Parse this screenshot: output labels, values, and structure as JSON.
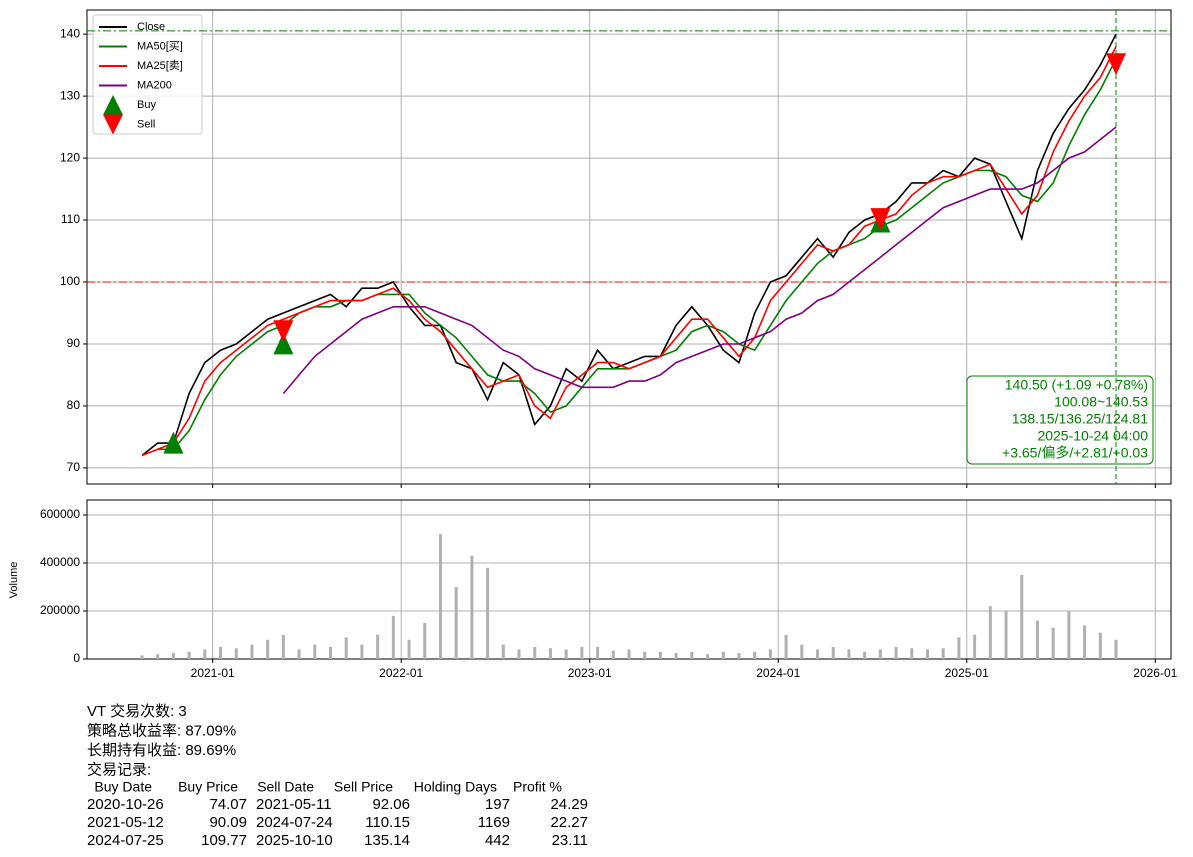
{
  "chart_data": [
    {
      "type": "line",
      "x": [
        "2020-08",
        "2020-09",
        "2020-10",
        "2020-11",
        "2020-12",
        "2021-01",
        "2021-02",
        "2021-03",
        "2021-04",
        "2021-05",
        "2021-06",
        "2021-07",
        "2021-08",
        "2021-09",
        "2021-10",
        "2021-11",
        "2021-12",
        "2022-01",
        "2022-02",
        "2022-03",
        "2022-04",
        "2022-05",
        "2022-06",
        "2022-07",
        "2022-08",
        "2022-09",
        "2022-10",
        "2022-11",
        "2022-12",
        "2023-01",
        "2023-02",
        "2023-03",
        "2023-04",
        "2023-05",
        "2023-06",
        "2023-07",
        "2023-08",
        "2023-09",
        "2023-10",
        "2023-11",
        "2023-12",
        "2024-01",
        "2024-02",
        "2024-03",
        "2024-04",
        "2024-05",
        "2024-06",
        "2024-07",
        "2024-08",
        "2024-09",
        "2024-10",
        "2024-11",
        "2024-12",
        "2025-01",
        "2025-02",
        "2025-03",
        "2025-04",
        "2025-05",
        "2025-06",
        "2025-07",
        "2025-08",
        "2025-09",
        "2025-10"
      ],
      "series": [
        {
          "name": "Close",
          "color": "#000000",
          "values": [
            72,
            74,
            74,
            82,
            87,
            89,
            90,
            92,
            94,
            95,
            96,
            97,
            98,
            96,
            99,
            99,
            100,
            96,
            93,
            93,
            87,
            86,
            81,
            87,
            85,
            77,
            80,
            86,
            84,
            89,
            86,
            87,
            88,
            88,
            93,
            96,
            93,
            89,
            87,
            95,
            100,
            101,
            104,
            107,
            104,
            108,
            110,
            111,
            113,
            116,
            116,
            118,
            117,
            120,
            119,
            113,
            107,
            118,
            124,
            128,
            131,
            135,
            140
          ]
        },
        {
          "name": "MA50[买]",
          "color": "#008000",
          "values": [
            null,
            73,
            73,
            76,
            81,
            85,
            88,
            90,
            92,
            93,
            95,
            96,
            96,
            97,
            97,
            98,
            98,
            98,
            95,
            93,
            91,
            88,
            85,
            84,
            84,
            82,
            79,
            80,
            83,
            86,
            86,
            86,
            87,
            88,
            89,
            92,
            93,
            92,
            90,
            89,
            93,
            97,
            100,
            103,
            105,
            106,
            107,
            109,
            110,
            112,
            114,
            116,
            117,
            118,
            118,
            117,
            114,
            113,
            116,
            122,
            127,
            131,
            136
          ]
        },
        {
          "name": "MA25[卖]",
          "color": "#ff0000",
          "values": [
            72,
            73,
            74,
            78,
            84,
            87,
            89,
            91,
            93,
            94,
            95,
            96,
            97,
            97,
            97,
            98,
            99,
            97,
            94,
            92,
            89,
            86,
            83,
            84,
            85,
            80,
            78,
            83,
            85,
            87,
            87,
            86,
            87,
            88,
            91,
            94,
            94,
            91,
            88,
            91,
            97,
            100,
            103,
            106,
            105,
            106,
            109,
            110,
            111,
            114,
            116,
            117,
            117,
            118,
            119,
            115,
            111,
            114,
            121,
            126,
            130,
            133,
            138
          ]
        },
        {
          "name": "MA200",
          "color": "#800080",
          "values": [
            null,
            null,
            null,
            null,
            null,
            null,
            null,
            null,
            null,
            82,
            85,
            88,
            90,
            92,
            94,
            95,
            96,
            96,
            96,
            95,
            94,
            93,
            91,
            89,
            88,
            86,
            85,
            84,
            83,
            83,
            83,
            84,
            84,
            85,
            87,
            88,
            89,
            90,
            90,
            91,
            92,
            94,
            95,
            97,
            98,
            100,
            102,
            104,
            106,
            108,
            110,
            112,
            113,
            114,
            115,
            115,
            115,
            116,
            118,
            120,
            121,
            123,
            125
          ]
        },
        {
          "name": "Buy",
          "color": "#008000",
          "marker": "triangle-up",
          "x": [
            "2020-10",
            "2021-05",
            "2024-07"
          ],
          "values": [
            74.07,
            90.09,
            109.77
          ]
        },
        {
          "name": "Sell",
          "color": "#ff0000",
          "marker": "triangle-down",
          "x": [
            "2021-05",
            "2024-07",
            "2025-10"
          ],
          "values": [
            92.06,
            110.15,
            135.14
          ]
        }
      ],
      "xlim": [
        "2020-05",
        "2026-02"
      ],
      "xticks": [
        "2021-01",
        "2022-01",
        "2023-01",
        "2024-01",
        "2025-01",
        "2026-01"
      ],
      "ylim": [
        67.4,
        143.9
      ],
      "yticks": [
        70,
        80,
        90,
        100,
        110,
        120,
        130,
        140
      ],
      "grid": true,
      "legend": "upper left",
      "hlines": [
        {
          "value": 100,
          "color": "#ff0000"
        },
        {
          "value": 140.53,
          "color": "#008000"
        }
      ],
      "vline": {
        "x": "2025-10",
        "color": "#008000"
      },
      "annotation": [
        "140.50 (+1.09 +0.78%)",
        "100.08~140.53",
        "138.15/136.25/124.81",
        "2025-10-24 04:00",
        "+3.65/偏多/+2.81/+0.03"
      ]
    },
    {
      "type": "bar",
      "ylabel": "Volume",
      "color": "#b0b0b0",
      "x": [
        "2020-08",
        "2020-09",
        "2020-10",
        "2020-11",
        "2020-12",
        "2021-01",
        "2021-02",
        "2021-03",
        "2021-04",
        "2021-05",
        "2021-06",
        "2021-07",
        "2021-08",
        "2021-09",
        "2021-10",
        "2021-11",
        "2021-12",
        "2022-01",
        "2022-02",
        "2022-03",
        "2022-04",
        "2022-05",
        "2022-06",
        "2022-07",
        "2022-08",
        "2022-09",
        "2022-10",
        "2022-11",
        "2022-12",
        "2023-01",
        "2023-02",
        "2023-03",
        "2023-04",
        "2023-05",
        "2023-06",
        "2023-07",
        "2023-08",
        "2023-09",
        "2023-10",
        "2023-11",
        "2023-12",
        "2024-01",
        "2024-02",
        "2024-03",
        "2024-04",
        "2024-05",
        "2024-06",
        "2024-07",
        "2024-08",
        "2024-09",
        "2024-10",
        "2024-11",
        "2024-12",
        "2025-01",
        "2025-02",
        "2025-03",
        "2025-04",
        "2025-05",
        "2025-06",
        "2025-07",
        "2025-08",
        "2025-09",
        "2025-10"
      ],
      "values": [
        15000,
        20000,
        25000,
        30000,
        40000,
        50000,
        45000,
        60000,
        80000,
        100000,
        40000,
        60000,
        50000,
        90000,
        60000,
        100000,
        180000,
        80000,
        150000,
        520000,
        300000,
        430000,
        380000,
        60000,
        40000,
        50000,
        45000,
        40000,
        50000,
        50000,
        35000,
        40000,
        30000,
        30000,
        25000,
        30000,
        20000,
        30000,
        25000,
        30000,
        40000,
        100000,
        60000,
        40000,
        50000,
        40000,
        30000,
        40000,
        50000,
        45000,
        40000,
        45000,
        90000,
        100000,
        220000,
        200000,
        350000,
        160000,
        130000,
        200000,
        140000,
        110000,
        80000
      ],
      "xlim": [
        "2020-05",
        "2026-02"
      ],
      "xticks": [
        "2021-01",
        "2022-01",
        "2023-01",
        "2024-01",
        "2025-01",
        "2026-01"
      ],
      "ylim": [
        0,
        662500
      ],
      "yticks": [
        0,
        200000,
        400000,
        600000
      ],
      "grid": true
    }
  ],
  "report": {
    "summary": [
      "VT 交易次数: 3",
      "策略总收益率: 87.09%",
      "长期持有收益: 89.69%",
      "交易记录:"
    ],
    "columns": [
      "Buy Date",
      "Buy Price",
      "Sell Date",
      "Sell Price",
      "Holding Days",
      "Profit %"
    ],
    "rows": [
      [
        "2020-10-26",
        74.07,
        "2021-05-11",
        92.06,
        197,
        24.29
      ],
      [
        "2021-05-12",
        90.09,
        "2024-07-24",
        110.15,
        1169,
        22.27
      ],
      [
        "2024-07-25",
        109.77,
        "2025-10-10",
        135.14,
        442,
        23.11
      ]
    ]
  }
}
